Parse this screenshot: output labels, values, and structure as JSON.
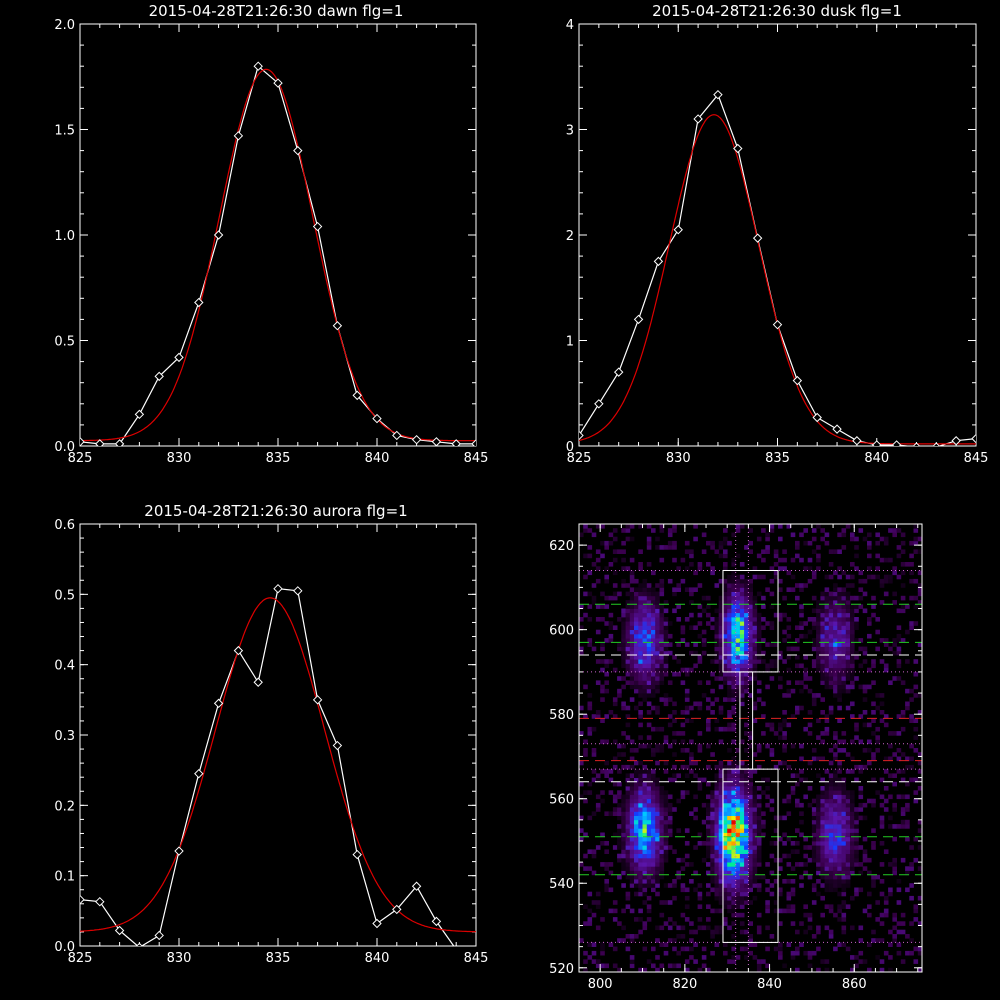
{
  "colors": {
    "background": "#000000",
    "axes": "#ffffff",
    "data_line": "#ffffff",
    "fit_line": "#dd0000",
    "green_dash": "#22cc22",
    "white_dash": "#ffffff",
    "red_dash": "#dd2222",
    "dotted": "#cc66cc"
  },
  "chart_data": [
    {
      "type": "line",
      "title": "2015-04-28T21:26:30 dawn flg=1",
      "xlim": [
        825,
        845
      ],
      "ylim": [
        0,
        2.0
      ],
      "xticks": [
        "825",
        "830",
        "835",
        "840",
        "845"
      ],
      "yticks": [
        "0.0",
        "0.5",
        "1.0",
        "1.5",
        "2.0"
      ],
      "series": [
        {
          "x": [
            825,
            826,
            827,
            828,
            829,
            830,
            831,
            832,
            833,
            834,
            835,
            836,
            837,
            838,
            839,
            840,
            841,
            842,
            843,
            844,
            845
          ],
          "y": [
            0.02,
            0.01,
            0.01,
            0.15,
            0.33,
            0.42,
            0.68,
            1.0,
            1.47,
            1.8,
            1.72,
            1.4,
            1.04,
            0.57,
            0.24,
            0.13,
            0.05,
            0.03,
            0.02,
            0.01,
            0.01
          ],
          "markers": "diamond"
        },
        {
          "fit": "gaussian",
          "amp": 1.76,
          "center": 834.4,
          "sigma": 2.35,
          "offset": 0.025
        }
      ]
    },
    {
      "type": "line",
      "title": "2015-04-28T21:26:30 dusk flg=1",
      "xlim": [
        825,
        845
      ],
      "ylim": [
        0,
        4
      ],
      "xticks": [
        "825",
        "830",
        "835",
        "840",
        "845"
      ],
      "yticks": [
        "0",
        "1",
        "2",
        "3",
        "4"
      ],
      "series": [
        {
          "x": [
            825,
            826,
            827,
            828,
            829,
            830,
            831,
            832,
            833,
            834,
            835,
            836,
            837,
            838,
            839,
            840,
            841,
            842,
            843,
            844,
            845
          ],
          "y": [
            0.1,
            0.4,
            0.7,
            1.2,
            1.75,
            2.05,
            3.1,
            3.33,
            2.82,
            1.97,
            1.15,
            0.62,
            0.27,
            0.16,
            0.05,
            0.01,
            0.01,
            -0.01,
            -0.01,
            0.05,
            0.07
          ],
          "markers": "diamond"
        },
        {
          "fit": "gaussian",
          "amp": 3.12,
          "center": 831.8,
          "sigma": 2.25,
          "offset": 0.02
        }
      ]
    },
    {
      "type": "line",
      "title": "2015-04-28T21:26:30 aurora flg=1",
      "xlim": [
        825,
        845
      ],
      "ylim": [
        0,
        0.6
      ],
      "xticks": [
        "825",
        "830",
        "835",
        "840",
        "845"
      ],
      "yticks": [
        "0.0",
        "0.1",
        "0.2",
        "0.3",
        "0.4",
        "0.5",
        "0.6"
      ],
      "series": [
        {
          "x": [
            825,
            826,
            827,
            828,
            829,
            830,
            831,
            832,
            833,
            834,
            835,
            836,
            837,
            838,
            839,
            840,
            841,
            842,
            843,
            844,
            845
          ],
          "y": [
            0.066,
            0.063,
            0.022,
            -0.002,
            0.015,
            0.135,
            0.245,
            0.345,
            0.42,
            0.375,
            0.508,
            0.505,
            0.35,
            0.285,
            0.13,
            0.032,
            0.052,
            0.085,
            0.035,
            -0.005,
            -0.02
          ],
          "markers": "diamond"
        },
        {
          "fit": "gaussian",
          "amp": 0.475,
          "center": 834.6,
          "sigma": 2.75,
          "offset": 0.02
        }
      ]
    },
    {
      "type": "heatmap",
      "xlim": [
        795,
        876
      ],
      "ylim": [
        519,
        625
      ],
      "xticks": [
        "800",
        "820",
        "840",
        "860"
      ],
      "yticks": [
        "520",
        "540",
        "560",
        "580",
        "600",
        "620"
      ],
      "blobs": [
        {
          "x": 810,
          "y": 597,
          "sx": 2.5,
          "sy": 6,
          "amp": 0.45
        },
        {
          "x": 832,
          "y": 598,
          "sx": 2.2,
          "sy": 6,
          "amp": 0.7
        },
        {
          "x": 855,
          "y": 597,
          "sx": 2.5,
          "sy": 6,
          "amp": 0.3
        },
        {
          "x": 810,
          "y": 552,
          "sx": 2.5,
          "sy": 6,
          "amp": 0.65
        },
        {
          "x": 831,
          "y": 551,
          "sx": 2.5,
          "sy": 7,
          "amp": 1.0
        },
        {
          "x": 855,
          "y": 551,
          "sx": 2.5,
          "sy": 6,
          "amp": 0.4
        }
      ],
      "boxes": [
        {
          "x0": 829,
          "x1": 842,
          "y0": 590,
          "y1": 614
        },
        {
          "x0": 829,
          "x1": 842,
          "y0": 526,
          "y1": 567
        },
        {
          "x0": 833,
          "x1": 836,
          "y0": 567,
          "y1": 590
        }
      ],
      "green_dashed_y": [
        606,
        597,
        551,
        542
      ],
      "white_dashed_y": [
        594,
        564
      ],
      "red_dashed_y": [
        579,
        569
      ],
      "dotted_y": [
        614,
        590,
        573,
        567,
        526
      ],
      "dotted_x": [
        832,
        835
      ]
    }
  ]
}
